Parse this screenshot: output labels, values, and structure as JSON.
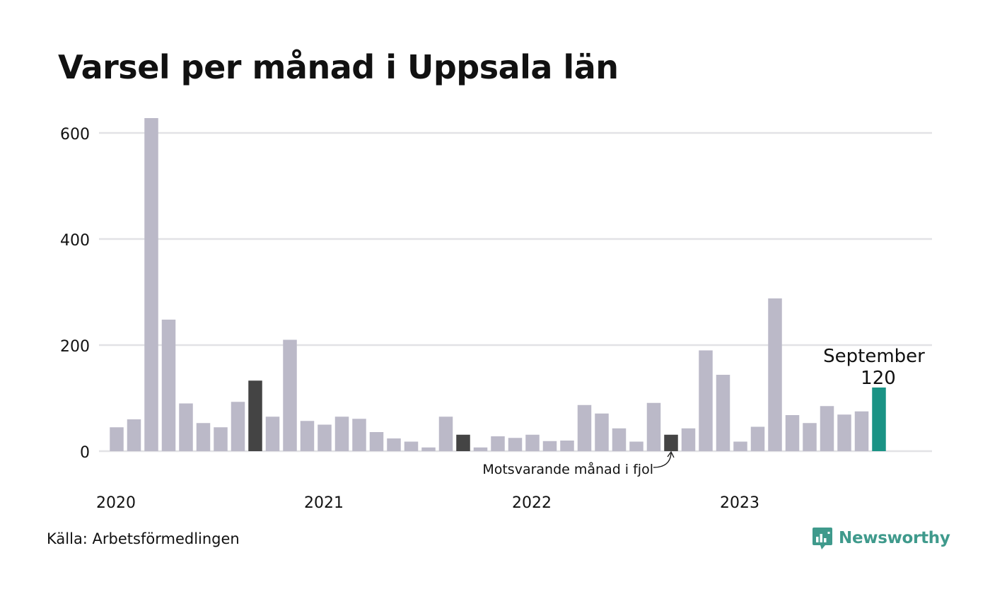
{
  "title": "Varsel per månad i Uppsala län",
  "source": "Källa: Arbetsförmedlingen",
  "brand": "Newsworthy",
  "colors": {
    "bar": "#bbb9c8",
    "comparison": "#444444",
    "current": "#1a9385",
    "grid": "#e2e2e6",
    "brand": "#3f9a8c"
  },
  "chart_data": {
    "type": "bar",
    "title": "Varsel per månad i Uppsala län",
    "xlabel": "",
    "ylabel": "",
    "ylim": [
      0,
      600
    ],
    "yticks": [
      0,
      200,
      400,
      600
    ],
    "xtick_labels": [
      "2020",
      "2021",
      "2022",
      "2023"
    ],
    "grid": true,
    "categories": [
      "2020-01",
      "2020-02",
      "2020-03",
      "2020-04",
      "2020-05",
      "2020-06",
      "2020-07",
      "2020-08",
      "2020-09",
      "2020-10",
      "2020-11",
      "2020-12",
      "2021-01",
      "2021-02",
      "2021-03",
      "2021-04",
      "2021-05",
      "2021-06",
      "2021-07",
      "2021-08",
      "2021-09",
      "2021-10",
      "2021-11",
      "2021-12",
      "2022-01",
      "2022-02",
      "2022-03",
      "2022-04",
      "2022-05",
      "2022-06",
      "2022-07",
      "2022-08",
      "2022-09",
      "2022-10",
      "2022-11",
      "2022-12",
      "2023-01",
      "2023-02",
      "2023-03",
      "2023-04",
      "2023-05",
      "2023-06",
      "2023-07",
      "2023-08",
      "2023-09"
    ],
    "values": [
      45,
      60,
      628,
      248,
      90,
      53,
      45,
      93,
      133,
      65,
      210,
      57,
      50,
      65,
      61,
      36,
      24,
      18,
      7,
      65,
      31,
      7,
      28,
      25,
      31,
      19,
      20,
      87,
      71,
      43,
      18,
      91,
      31,
      43,
      190,
      144,
      18,
      46,
      288,
      68,
      53,
      85,
      69,
      75,
      120
    ],
    "highlights": {
      "comparison_indices": [
        8,
        20,
        32
      ],
      "current_index": 44
    },
    "annotations": {
      "current_label": "September",
      "current_value": "120",
      "comparison_note": "Motsvarande månad i fjol"
    }
  }
}
